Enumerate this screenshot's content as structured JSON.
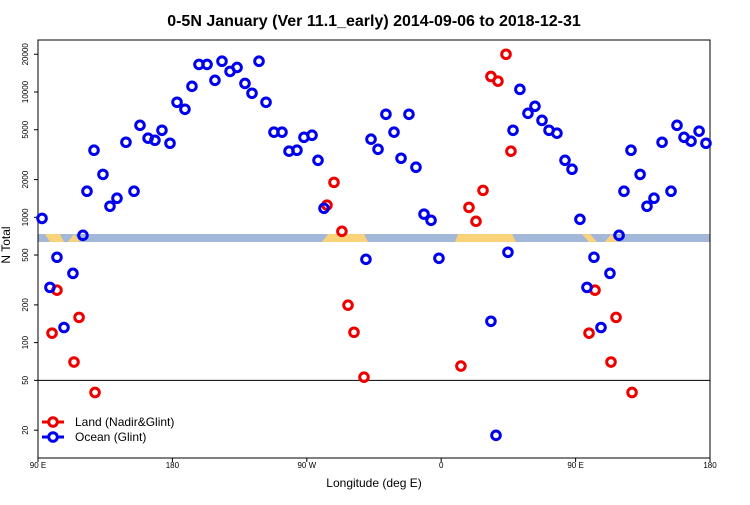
{
  "chart_data": {
    "type": "scatter",
    "title": "0-5N January (Ver 11.1_early)   2014-09-06 to 2018-12-31",
    "x_label": "Longitude (deg E)",
    "y_label": "N Total",
    "log_y": true,
    "legend": "lower left",
    "hline": 50,
    "xlim": [
      90,
      540
    ],
    "ylim": [
      12,
      26000
    ],
    "xticks": [
      {
        "value": 90,
        "label": "90 E"
      },
      180,
      {
        "value": 270,
        "label": "90 W"
      },
      {
        "value": 360,
        "label": "0"
      },
      {
        "value": 450,
        "label": "90 E"
      },
      {
        "value": 540,
        "label": "180"
      }
    ],
    "yticks": [
      20,
      50,
      100,
      200,
      500,
      1000,
      2000,
      5000,
      10000,
      20000
    ],
    "series": [
      {
        "name": "Land (Nadir&Glint)",
        "color": "#ee0000",
        "x": [
          99.4,
          102.7,
          114.1,
          117.5,
          128.2,
          283.5,
          288.2,
          293.5,
          297.6,
          301.6,
          308.3,
          373.2,
          378.6,
          383.3,
          388.0,
          393.3,
          398.0,
          403.4,
          406.7,
          459.0,
          463.0,
          473.7,
          477.1,
          487.8
        ],
        "values": [
          119,
          262,
          70,
          159,
          40,
          1250,
          1900,
          773,
          199,
          121,
          53,
          65,
          1200,
          929,
          1640,
          13300,
          12200,
          20000,
          3370,
          119,
          262,
          70,
          159,
          40
        ]
      },
      {
        "name": "Ocean (Glint)",
        "color": "#0000ee",
        "x": [
          92.7,
          98.0,
          102.7,
          107.4,
          113.4,
          120.1,
          122.8,
          127.5,
          133.5,
          138.2,
          142.9,
          148.9,
          154.3,
          158.3,
          163.7,
          168.3,
          173.0,
          178.4,
          183.1,
          188.4,
          193.1,
          197.8,
          203.2,
          208.5,
          213.2,
          218.6,
          223.3,
          228.6,
          233.3,
          238.0,
          242.7,
          248.0,
          253.4,
          258.1,
          263.4,
          268.1,
          273.5,
          277.5,
          281.5,
          309.6,
          313.0,
          317.7,
          323.0,
          328.4,
          333.1,
          338.4,
          343.1,
          348.5,
          353.2,
          358.5,
          393.3,
          396.7,
          404.7,
          408.1,
          412.7,
          418.1,
          422.8,
          427.5,
          432.2,
          437.5,
          442.9,
          447.6,
          452.9,
          457.6,
          462.3,
          467.0,
          473.0,
          479.1,
          482.4,
          487.1,
          493.2,
          497.8,
          502.5,
          507.9,
          513.9,
          517.9,
          522.6,
          527.3,
          532.7,
          537.3
        ],
        "values": [
          980,
          276,
          480,
          132,
          357,
          718,
          1615,
          3430,
          2200,
          1225,
          1420,
          3970,
          1615,
          5420,
          4280,
          4120,
          4950,
          3900,
          8280,
          7280,
          11100,
          16600,
          16600,
          12400,
          17600,
          14600,
          15700,
          11700,
          9770,
          17600,
          8280,
          4780,
          4780,
          3370,
          3430,
          4350,
          4520,
          2850,
          1180,
          462,
          4200,
          3490,
          6640,
          4780,
          2960,
          6640,
          2510,
          1060,
          946,
          471,
          148,
          18.2,
          526,
          4950,
          10500,
          6760,
          7690,
          5940,
          4950,
          4690,
          2850,
          2420,
          964,
          276,
          480,
          132,
          357,
          718,
          1615,
          3430,
          2200,
          1225,
          1420,
          3970,
          1615,
          5420,
          4350,
          4050,
          4870,
          3900
        ]
      }
    ]
  }
}
